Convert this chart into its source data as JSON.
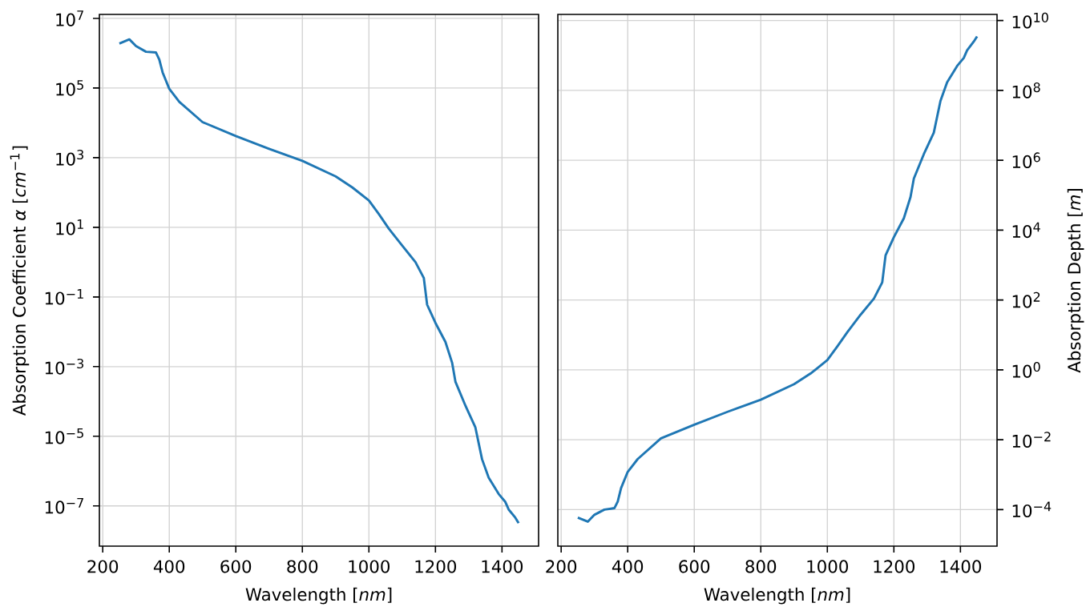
{
  "chart_data": [
    {
      "type": "line",
      "xlabel": "Wavelength [*nm*]",
      "ylabel": "Absorption Coefficient *α* [*cm*$^{−1}$]",
      "log": "y",
      "grid": true,
      "xlim": [
        190,
        1510
      ],
      "ylim": [
        7e-09,
        13000000.0
      ],
      "xticks": [
        200,
        400,
        600,
        800,
        1000,
        1200,
        1400
      ],
      "yticks": [
        {
          "value": 1e-07,
          "label": "10$^{−7}$"
        },
        {
          "value": 1e-05,
          "label": "10$^{−5}$"
        },
        {
          "value": 0.001,
          "label": "10$^{−3}$"
        },
        {
          "value": 0.1,
          "label": "10$^{−1}$"
        },
        {
          "value": 10,
          "label": "10$^{1}$"
        },
        {
          "value": 1000,
          "label": "10$^{3}$"
        },
        {
          "value": 100000.0,
          "label": "10$^{5}$"
        },
        {
          "value": 10000000.0,
          "label": "10$^{7}$"
        }
      ],
      "series": [
        {
          "color": "#1f77b4",
          "x": [
            250,
            280,
            300,
            330,
            360,
            370,
            380,
            400,
            430,
            500,
            600,
            700,
            800,
            900,
            950,
            1000,
            1030,
            1060,
            1100,
            1140,
            1165,
            1175,
            1200,
            1230,
            1250,
            1260,
            1290,
            1320,
            1340,
            1360,
            1390,
            1410,
            1420,
            1440,
            1450
          ],
          "values": [
            1900000.0,
            2500000.0,
            1600000.0,
            1100000.0,
            1050000.0,
            660000.0,
            280000.0,
            95000.0,
            40000.0,
            10500.0,
            4200.0,
            1800.0,
            810,
            290,
            140,
            59,
            24,
            9.1,
            3.0,
            1.0,
            0.35,
            0.06,
            0.018,
            0.0051,
            0.0013,
            0.00037,
            7.6e-05,
            1.8e-05,
            2.2e-06,
            6.5e-07,
            2.2e-07,
            1.3e-07,
            7.9e-08,
            4.6e-08,
            3.2e-08
          ]
        }
      ]
    },
    {
      "type": "line",
      "xlabel": "Wavelength [*nm*]",
      "y2label": "Absorption Depth [*m*]",
      "log": "y2",
      "grid": true,
      "xlim": [
        190,
        1510
      ],
      "y2lim": [
        9e-06,
        15000000000.0
      ],
      "xticks": [
        200,
        400,
        600,
        800,
        1000,
        1200,
        1400
      ],
      "y2ticks": [
        {
          "value": 0.0001,
          "label": "10$^{−4}$"
        },
        {
          "value": 0.01,
          "label": "10$^{−2}$"
        },
        {
          "value": 1,
          "label": "10$^{0}$"
        },
        {
          "value": 100,
          "label": "10$^{2}$"
        },
        {
          "value": 10000.0,
          "label": "10$^{4}$"
        },
        {
          "value": 1000000.0,
          "label": "10$^{6}$"
        },
        {
          "value": 100000000.0,
          "label": "10$^{8}$"
        },
        {
          "value": 10000000000.0,
          "label": "10$^{10}$"
        }
      ],
      "series": [
        {
          "color": "#1f77b4",
          "axis": "y2",
          "x": [
            250,
            280,
            300,
            330,
            360,
            370,
            380,
            400,
            430,
            500,
            600,
            700,
            800,
            900,
            950,
            1000,
            1030,
            1060,
            1100,
            1140,
            1165,
            1175,
            1200,
            1230,
            1250,
            1260,
            1290,
            1320,
            1340,
            1360,
            1390,
            1410,
            1420,
            1440,
            1450
          ],
          "values": [
            5.9e-05,
            4.5e-05,
            7.1e-05,
            0.0001,
            0.00011,
            0.00017,
            0.00041,
            0.0012,
            0.0028,
            0.011,
            0.027,
            0.063,
            0.14,
            0.39,
            0.79,
            1.9,
            4.7,
            12,
            38,
            110,
            320,
            1900,
            6300,
            22000.0,
            89000.0,
            300000.0,
            1500000.0,
            6200000.0,
            50000000.0,
            170000000.0,
            500000000.0,
            850000000.0,
            1400000000.0,
            2500000000.0,
            3500000000.0
          ]
        }
      ]
    }
  ]
}
